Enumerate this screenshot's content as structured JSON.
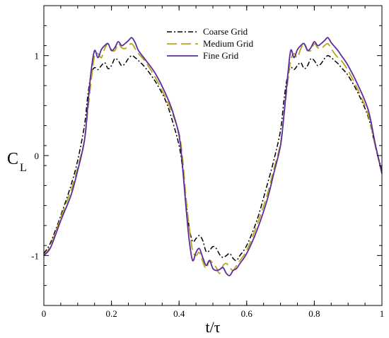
{
  "chart_data": {
    "type": "line",
    "title": "",
    "xlabel": "t/τ",
    "ylabel_main": "C",
    "ylabel_sub": "L",
    "xlim": [
      0,
      1
    ],
    "ylim": [
      -1.5,
      1.5
    ],
    "x_ticks": [
      0,
      0.2,
      0.4,
      0.6,
      0.8,
      1
    ],
    "x_tick_labels": [
      "0",
      "0.2",
      "0.4",
      "0.6",
      "0.8",
      "1"
    ],
    "y_ticks": [
      -1,
      0,
      1
    ],
    "y_tick_labels": [
      "-1",
      "0",
      "1"
    ],
    "grid": false,
    "legend_position": "top-center",
    "x": [
      0,
      0.02,
      0.05,
      0.08,
      0.1,
      0.12,
      0.13,
      0.14,
      0.15,
      0.16,
      0.17,
      0.18,
      0.19,
      0.2,
      0.21,
      0.22,
      0.23,
      0.24,
      0.25,
      0.26,
      0.27,
      0.28,
      0.3,
      0.33,
      0.36,
      0.38,
      0.4,
      0.41,
      0.42,
      0.43,
      0.44,
      0.45,
      0.46,
      0.47,
      0.48,
      0.49,
      0.5,
      0.51,
      0.52,
      0.53,
      0.54,
      0.55,
      0.56,
      0.57,
      0.58,
      0.6,
      0.63,
      0.66,
      0.68,
      0.7,
      0.71,
      0.72,
      0.73,
      0.74,
      0.75,
      0.76,
      0.77,
      0.78,
      0.79,
      0.8,
      0.81,
      0.82,
      0.83,
      0.84,
      0.85,
      0.86,
      0.87,
      0.88,
      0.9,
      0.93,
      0.96,
      0.98,
      1
    ],
    "series": [
      {
        "name": "Coarse Grid",
        "color": "#000000",
        "dash": "7,3,2,3",
        "width": 1.5,
        "values": [
          -0.98,
          -0.87,
          -0.6,
          -0.3,
          -0.05,
          0.3,
          0.6,
          0.82,
          0.88,
          0.86,
          0.9,
          0.93,
          0.87,
          0.9,
          0.97,
          0.95,
          0.9,
          0.92,
          0.97,
          1.0,
          0.98,
          0.95,
          0.88,
          0.74,
          0.55,
          0.35,
          0.1,
          -0.12,
          -0.45,
          -0.72,
          -0.86,
          -0.83,
          -0.8,
          -0.85,
          -0.96,
          -0.95,
          -0.91,
          -0.93,
          -0.99,
          -1.02,
          -1.0,
          -0.98,
          -1.03,
          -1.05,
          -1.0,
          -0.9,
          -0.65,
          -0.3,
          -0.05,
          0.25,
          0.55,
          0.78,
          0.88,
          0.86,
          0.9,
          0.93,
          0.87,
          0.9,
          0.97,
          0.95,
          0.9,
          0.92,
          0.97,
          1.0,
          0.98,
          0.95,
          0.92,
          0.88,
          0.8,
          0.62,
          0.38,
          0.1,
          -0.15
        ]
      },
      {
        "name": "Medium Grid",
        "color": "#b6a615",
        "dash": "14,6",
        "width": 1.8,
        "values": [
          -1.0,
          -0.9,
          -0.62,
          -0.35,
          -0.12,
          0.15,
          0.45,
          0.75,
          1.0,
          1.02,
          0.98,
          1.07,
          1.12,
          1.06,
          1.05,
          1.12,
          1.08,
          1.07,
          1.1,
          1.12,
          1.07,
          1.02,
          0.94,
          0.78,
          0.58,
          0.42,
          0.22,
          -0.02,
          -0.4,
          -0.72,
          -0.95,
          -1.0,
          -0.97,
          -1.06,
          -1.13,
          -1.05,
          -1.08,
          -1.12,
          -1.18,
          -1.1,
          -1.08,
          -1.12,
          -1.15,
          -1.1,
          -1.05,
          -0.95,
          -0.7,
          -0.4,
          -0.14,
          0.12,
          0.4,
          0.7,
          0.95,
          1.02,
          0.98,
          1.07,
          1.12,
          1.06,
          1.05,
          1.12,
          1.08,
          1.07,
          1.1,
          1.12,
          1.07,
          1.02,
          0.98,
          0.95,
          0.85,
          0.65,
          0.4,
          0.1,
          -0.18
        ]
      },
      {
        "name": "Fine Grid",
        "color": "#5a2ca0",
        "dash": "",
        "width": 1.8,
        "values": [
          -1.0,
          -0.92,
          -0.65,
          -0.4,
          -0.15,
          0.15,
          0.5,
          0.85,
          1.05,
          0.98,
          1.06,
          1.1,
          1.12,
          1.05,
          1.08,
          1.14,
          1.1,
          1.12,
          1.15,
          1.18,
          1.13,
          1.05,
          0.96,
          0.82,
          0.62,
          0.45,
          0.2,
          -0.1,
          -0.5,
          -0.85,
          -1.05,
          -0.97,
          -0.93,
          -1.02,
          -1.1,
          -1.05,
          -1.13,
          -1.15,
          -1.14,
          -1.12,
          -1.18,
          -1.2,
          -1.15,
          -1.13,
          -1.08,
          -0.98,
          -0.75,
          -0.45,
          -0.18,
          0.1,
          0.4,
          0.75,
          1.05,
          0.98,
          1.06,
          1.1,
          1.12,
          1.05,
          1.08,
          1.14,
          1.1,
          1.12,
          1.15,
          1.18,
          1.13,
          1.09,
          1.05,
          1.0,
          0.9,
          0.7,
          0.45,
          0.12,
          -0.18
        ]
      }
    ]
  }
}
